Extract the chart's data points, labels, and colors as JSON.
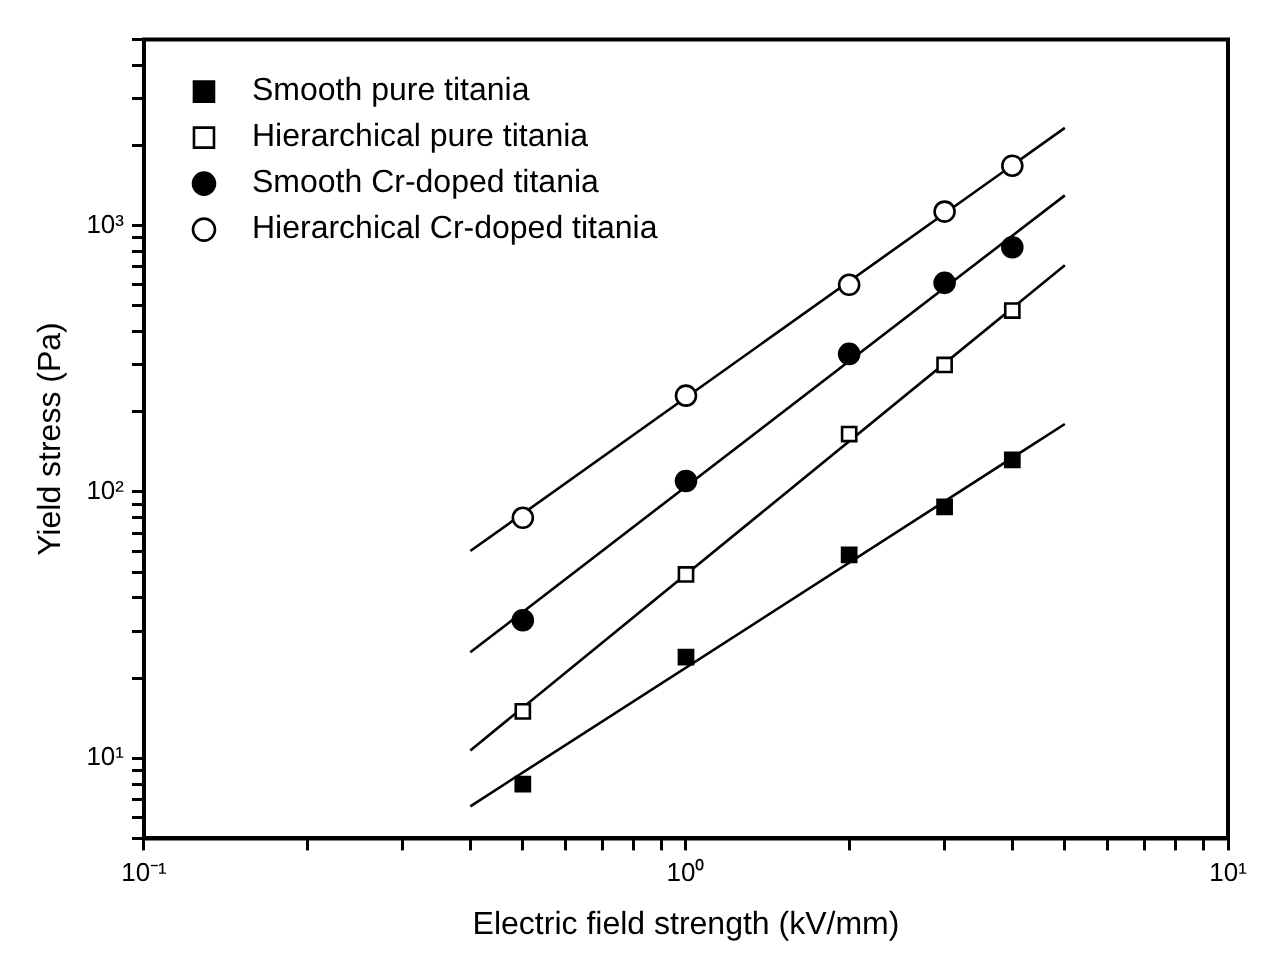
{
  "chart_data": {
    "type": "scatter",
    "xlabel": "Electric field strength (kV/mm)",
    "ylabel": "Yield stress (Pa)",
    "log": "xy",
    "xlim": [
      0.1,
      10
    ],
    "ylim": [
      5,
      5000
    ],
    "xticks": [
      {
        "value": 0.1,
        "label": "10⁻¹"
      },
      {
        "value": 0.2,
        "label": null
      },
      {
        "value": 0.3,
        "label": null
      },
      {
        "value": 0.4,
        "label": null
      },
      {
        "value": 0.5,
        "label": null
      },
      {
        "value": 0.6,
        "label": null
      },
      {
        "value": 0.7,
        "label": null
      },
      {
        "value": 0.8,
        "label": null
      },
      {
        "value": 0.9,
        "label": null
      },
      {
        "value": 1,
        "label": "10⁰"
      },
      {
        "value": 2,
        "label": null
      },
      {
        "value": 3,
        "label": null
      },
      {
        "value": 4,
        "label": null
      },
      {
        "value": 5,
        "label": null
      },
      {
        "value": 6,
        "label": null
      },
      {
        "value": 7,
        "label": null
      },
      {
        "value": 8,
        "label": null
      },
      {
        "value": 9,
        "label": null
      },
      {
        "value": 10,
        "label": "10¹"
      }
    ],
    "yticks": [
      {
        "value": 5,
        "label": null
      },
      {
        "value": 6,
        "label": null
      },
      {
        "value": 7,
        "label": null
      },
      {
        "value": 8,
        "label": null
      },
      {
        "value": 9,
        "label": null
      },
      {
        "value": 10,
        "label": "10¹"
      },
      {
        "value": 20,
        "label": null
      },
      {
        "value": 30,
        "label": null
      },
      {
        "value": 40,
        "label": null
      },
      {
        "value": 50,
        "label": null
      },
      {
        "value": 60,
        "label": null
      },
      {
        "value": 70,
        "label": null
      },
      {
        "value": 80,
        "label": null
      },
      {
        "value": 90,
        "label": null
      },
      {
        "value": 100,
        "label": "10²"
      },
      {
        "value": 200,
        "label": null
      },
      {
        "value": 300,
        "label": null
      },
      {
        "value": 400,
        "label": null
      },
      {
        "value": 500,
        "label": null
      },
      {
        "value": 600,
        "label": null
      },
      {
        "value": 700,
        "label": null
      },
      {
        "value": 800,
        "label": null
      },
      {
        "value": 900,
        "label": null
      },
      {
        "value": 1000,
        "label": "10³"
      },
      {
        "value": 2000,
        "label": null
      },
      {
        "value": 3000,
        "label": null
      },
      {
        "value": 4000,
        "label": null
      },
      {
        "value": 5000,
        "label": null
      }
    ],
    "grid": false,
    "legend": "top left",
    "series": [
      {
        "name": "Smooth pure titania",
        "marker": "square",
        "color": "#000000",
        "x": [
          0.5,
          1,
          2,
          3,
          4
        ],
        "values": [
          8,
          24,
          58,
          88,
          132
        ]
      },
      {
        "name": "Hierarchical pure titania",
        "marker": "square-open",
        "color": "#000000",
        "x": [
          0.5,
          1,
          2,
          3,
          4
        ],
        "values": [
          15,
          49,
          165,
          300,
          480
        ]
      },
      {
        "name": "Smooth Cr-doped titania",
        "marker": "circle",
        "color": "#000000",
        "x": [
          0.5,
          1,
          2,
          3,
          4
        ],
        "values": [
          33,
          110,
          330,
          610,
          830
        ]
      },
      {
        "name": "Hierarchical Cr-doped titania",
        "marker": "circle-open",
        "color": "#000000",
        "x": [
          0.5,
          1,
          2,
          3,
          4
        ],
        "values": [
          80,
          230,
          600,
          1130,
          1680
        ]
      },
      {
        "type": "line",
        "marker": "none",
        "color": "#000000",
        "x": [
          0.4,
          5
        ],
        "values": [
          6.6,
          180
        ]
      },
      {
        "type": "line",
        "marker": "none",
        "color": "#000000",
        "x": [
          0.4,
          5
        ],
        "values": [
          10.7,
          710
        ]
      },
      {
        "type": "line",
        "marker": "none",
        "color": "#000000",
        "x": [
          0.4,
          5
        ],
        "values": [
          25,
          1300
        ]
      },
      {
        "type": "line",
        "marker": "none",
        "color": "#000000",
        "x": [
          0.4,
          5
        ],
        "values": [
          60,
          2330
        ]
      }
    ]
  }
}
